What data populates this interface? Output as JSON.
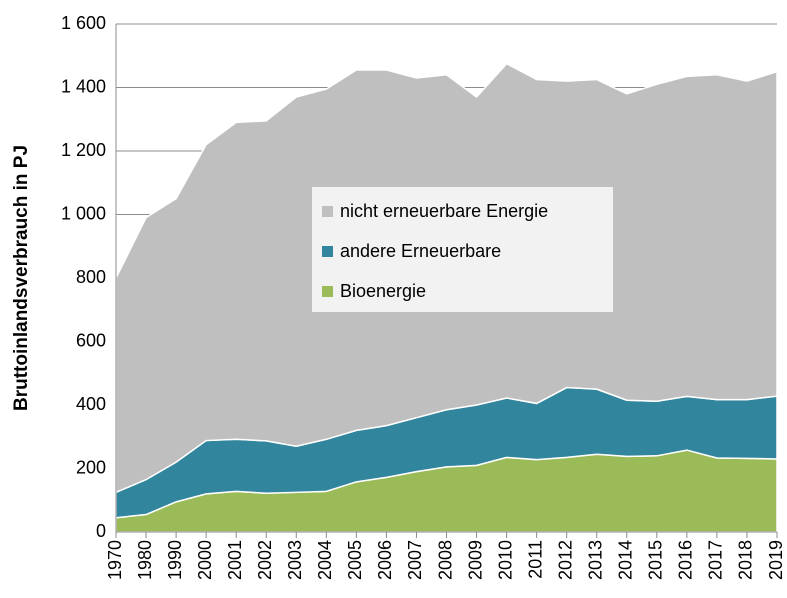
{
  "chart_data": {
    "type": "stacked_area",
    "y_label": "Bruttoinlandsverbrauch in PJ",
    "categories": [
      "1970",
      "1980",
      "1990",
      "2000",
      "2001",
      "2002",
      "2003",
      "2004",
      "2005",
      "2006",
      "2007",
      "2008",
      "2009",
      "2010",
      "2011",
      "2012",
      "2013",
      "2014",
      "2015",
      "2016",
      "2017",
      "2018",
      "2019"
    ],
    "series": [
      {
        "name": "Bioenergie",
        "color": "#9bbb59",
        "values": [
          45,
          55,
          95,
          120,
          128,
          122,
          125,
          128,
          158,
          172,
          190,
          205,
          210,
          235,
          228,
          235,
          245,
          238,
          240,
          258,
          233,
          232,
          230
        ]
      },
      {
        "name": "andere Erneuerbare",
        "color": "#31859c",
        "values": [
          80,
          110,
          125,
          168,
          164,
          165,
          145,
          164,
          162,
          163,
          170,
          180,
          190,
          187,
          177,
          220,
          205,
          177,
          172,
          169,
          184,
          185,
          198
        ]
      },
      {
        "name": "nicht erneuerbare Energie",
        "color": "#bfbfbf",
        "values": [
          675,
          825,
          830,
          932,
          998,
          1008,
          1100,
          1103,
          1135,
          1120,
          1070,
          1055,
          970,
          1053,
          1020,
          965,
          975,
          965,
          998,
          1008,
          1023,
          1003,
          1022
        ]
      }
    ],
    "ylim": [
      0,
      1600
    ],
    "yticks": [
      0,
      200,
      400,
      600,
      800,
      {
        "value": 1000,
        "label": "1 000"
      },
      {
        "value": 1200,
        "label": "1 200"
      },
      {
        "value": 1400,
        "label": "1 400"
      },
      {
        "value": 1600,
        "label": "1 600"
      }
    ],
    "grid": true
  }
}
